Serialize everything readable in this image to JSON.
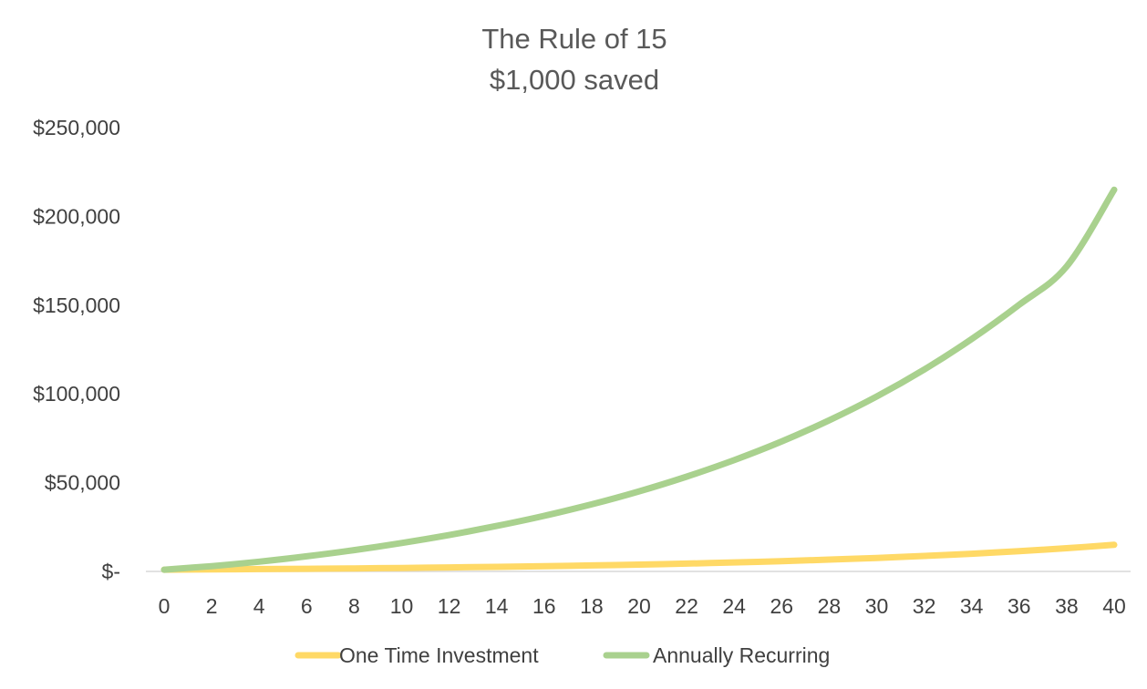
{
  "chart_data": {
    "type": "line",
    "title": [
      "The Rule of 15",
      "$1,000 saved"
    ],
    "xlabel": "",
    "ylabel": "",
    "x": [
      0,
      2,
      4,
      6,
      8,
      10,
      12,
      14,
      16,
      18,
      20,
      22,
      24,
      26,
      28,
      30,
      32,
      34,
      36,
      38,
      40
    ],
    "x_tick_labels": [
      "0",
      "2",
      "4",
      "6",
      "8",
      "10",
      "12",
      "14",
      "16",
      "18",
      "20",
      "22",
      "24",
      "26",
      "28",
      "30",
      "32",
      "34",
      "36",
      "38",
      "40"
    ],
    "ylim": [
      0,
      250000
    ],
    "y_ticks": [
      0,
      50000,
      100000,
      150000,
      200000,
      250000
    ],
    "y_tick_labels": [
      "$-",
      "$50,000",
      "$100,000",
      "$150,000",
      "$200,000",
      "$250,000"
    ],
    "grid": false,
    "legend": "bottom",
    "series": [
      {
        "name": "One Time Investment",
        "color": "#FFD966",
        "values": [
          1000,
          1145,
          1311,
          1501,
          1718,
          1967,
          2252,
          2579,
          2952,
          3380,
          3870,
          4431,
          5072,
          5807,
          6649,
          7612,
          8715,
          9978,
          11424,
          13079,
          14974
        ]
      },
      {
        "name": "Annually Recurring",
        "color": "#A9D18E",
        "values": [
          1000,
          3000,
          5500,
          8500,
          12000,
          16000,
          20500,
          25600,
          31300,
          37800,
          45100,
          53400,
          62700,
          73200,
          85100,
          98500,
          113700,
          130900,
          150200,
          171800,
          215000
        ]
      }
    ]
  }
}
